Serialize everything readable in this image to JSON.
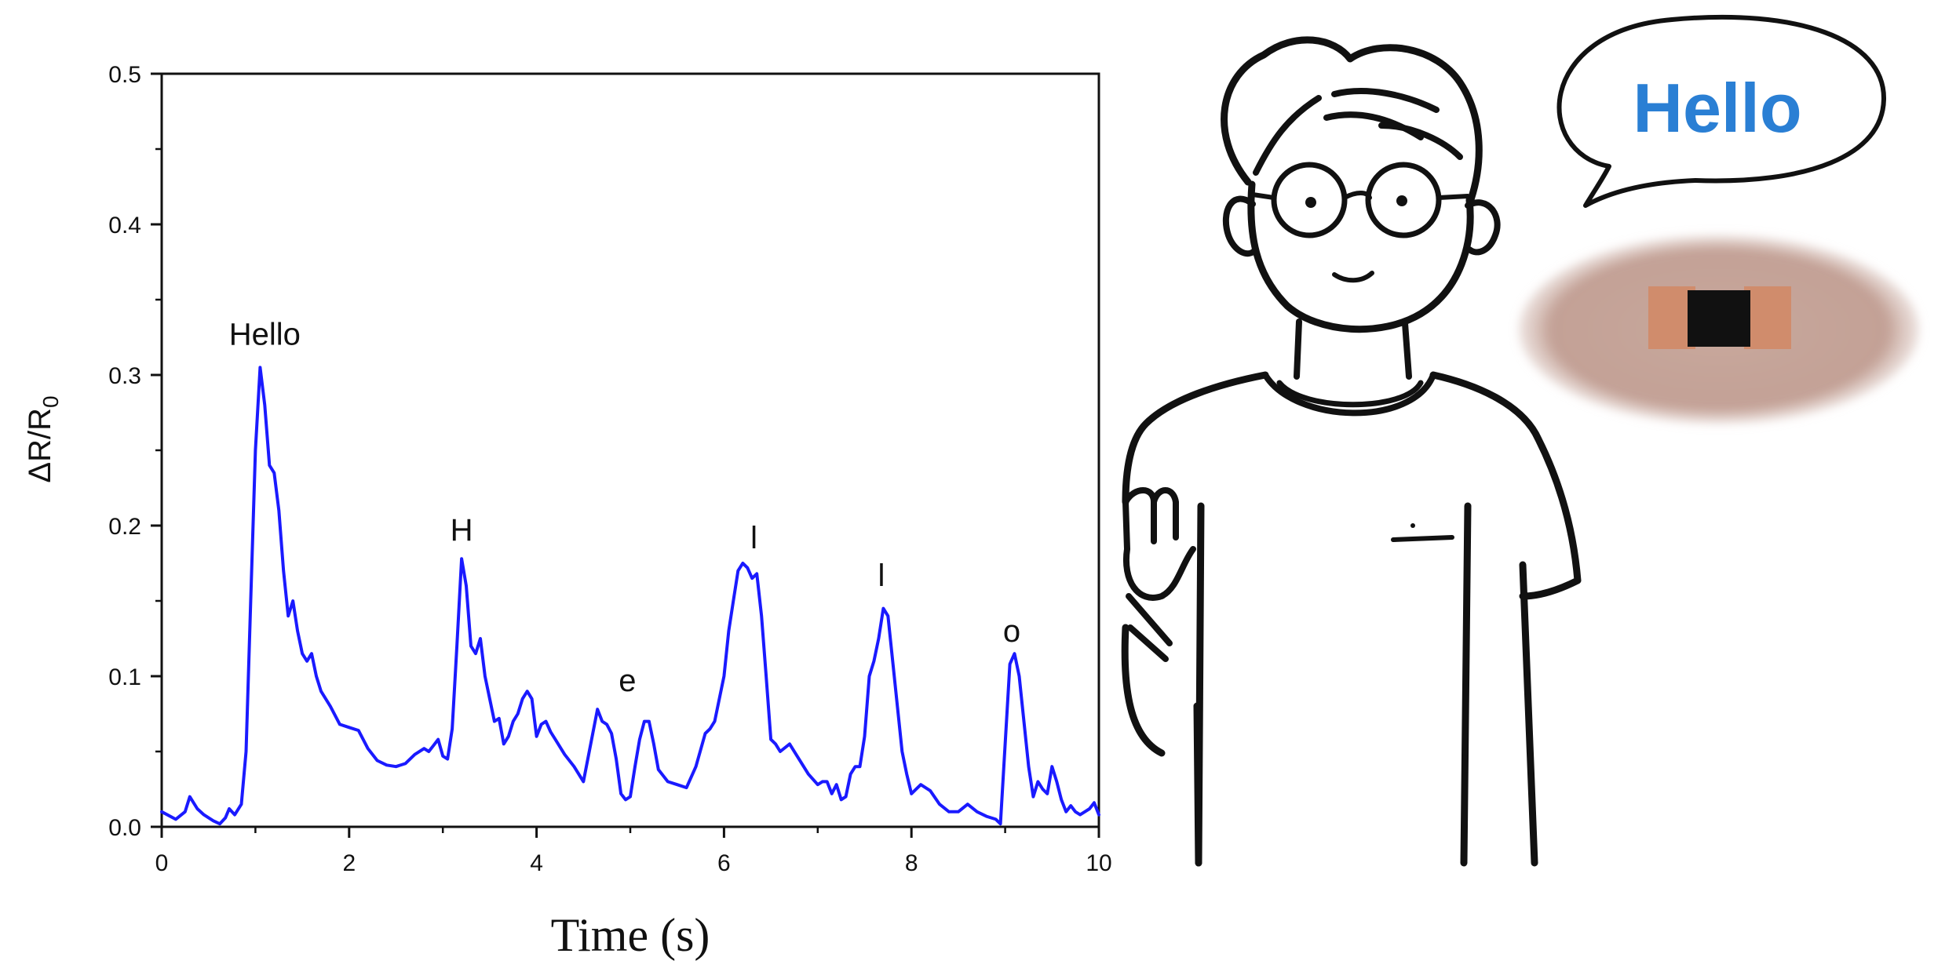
{
  "chart_data": {
    "type": "line",
    "xlabel": "Time (s)",
    "ylabel": "ΔR/R",
    "ylabel_subscript": "0",
    "xlim": [
      0,
      10
    ],
    "ylim": [
      0,
      0.5
    ],
    "x_ticks": [
      0,
      2,
      4,
      6,
      8,
      10
    ],
    "y_ticks": [
      0.0,
      0.1,
      0.2,
      0.3,
      0.4,
      0.5
    ],
    "x_tick_labels": [
      "0",
      "2",
      "4",
      "6",
      "8",
      "10"
    ],
    "y_tick_labels": [
      "0.0",
      "0.1",
      "0.2",
      "0.3",
      "0.4",
      "0.5"
    ],
    "grid": false,
    "series": [
      {
        "color": "#1a1aff",
        "x": [
          0,
          0.15,
          0.25,
          0.3,
          0.38,
          0.45,
          0.55,
          0.62,
          0.68,
          0.72,
          0.78,
          0.85,
          0.9,
          0.95,
          1.0,
          1.05,
          1.1,
          1.15,
          1.2,
          1.25,
          1.3,
          1.35,
          1.4,
          1.45,
          1.5,
          1.55,
          1.6,
          1.65,
          1.7,
          1.8,
          1.9,
          2.0,
          2.1,
          2.2,
          2.3,
          2.4,
          2.5,
          2.6,
          2.7,
          2.8,
          2.85,
          2.9,
          2.95,
          3.0,
          3.05,
          3.1,
          3.15,
          3.2,
          3.25,
          3.3,
          3.35,
          3.4,
          3.45,
          3.5,
          3.55,
          3.6,
          3.65,
          3.7,
          3.75,
          3.8,
          3.85,
          3.9,
          3.95,
          4.0,
          4.05,
          4.1,
          4.15,
          4.2,
          4.3,
          4.4,
          4.5,
          4.6,
          4.65,
          4.7,
          4.75,
          4.8,
          4.85,
          4.9,
          4.95,
          5.0,
          5.05,
          5.1,
          5.15,
          5.2,
          5.25,
          5.3,
          5.35,
          5.4,
          5.5,
          5.6,
          5.7,
          5.8,
          5.85,
          5.9,
          6.0,
          6.05,
          6.1,
          6.15,
          6.2,
          6.25,
          6.3,
          6.35,
          6.4,
          6.45,
          6.5,
          6.55,
          6.6,
          6.7,
          6.8,
          6.9,
          7.0,
          7.05,
          7.1,
          7.15,
          7.2,
          7.25,
          7.3,
          7.35,
          7.4,
          7.45,
          7.5,
          7.55,
          7.6,
          7.65,
          7.7,
          7.75,
          7.8,
          7.85,
          7.9,
          7.95,
          8.0,
          8.1,
          8.2,
          8.3,
          8.4,
          8.5,
          8.6,
          8.7,
          8.8,
          8.9,
          8.95,
          9.0,
          9.05,
          9.1,
          9.15,
          9.2,
          9.25,
          9.3,
          9.35,
          9.4,
          9.45,
          9.5,
          9.55,
          9.6,
          9.65,
          9.7,
          9.75,
          9.8,
          9.85,
          9.9,
          9.95,
          10.0
        ],
        "y": [
          0.01,
          0.005,
          0.01,
          0.02,
          0.012,
          0.008,
          0.004,
          0.002,
          0.006,
          0.012,
          0.008,
          0.015,
          0.05,
          0.15,
          0.25,
          0.305,
          0.28,
          0.24,
          0.235,
          0.21,
          0.17,
          0.14,
          0.15,
          0.13,
          0.115,
          0.11,
          0.115,
          0.1,
          0.09,
          0.08,
          0.068,
          0.066,
          0.064,
          0.052,
          0.044,
          0.041,
          0.04,
          0.042,
          0.048,
          0.052,
          0.05,
          0.054,
          0.058,
          0.047,
          0.045,
          0.065,
          0.12,
          0.178,
          0.16,
          0.12,
          0.115,
          0.125,
          0.1,
          0.085,
          0.07,
          0.072,
          0.055,
          0.06,
          0.07,
          0.075,
          0.085,
          0.09,
          0.085,
          0.06,
          0.068,
          0.07,
          0.063,
          0.058,
          0.048,
          0.04,
          0.03,
          0.062,
          0.078,
          0.07,
          0.068,
          0.062,
          0.045,
          0.022,
          0.018,
          0.02,
          0.04,
          0.058,
          0.07,
          0.07,
          0.055,
          0.038,
          0.034,
          0.03,
          0.028,
          0.026,
          0.04,
          0.062,
          0.065,
          0.07,
          0.1,
          0.13,
          0.15,
          0.17,
          0.175,
          0.172,
          0.165,
          0.168,
          0.14,
          0.1,
          0.058,
          0.055,
          0.05,
          0.055,
          0.045,
          0.035,
          0.028,
          0.03,
          0.03,
          0.022,
          0.028,
          0.018,
          0.02,
          0.035,
          0.04,
          0.04,
          0.06,
          0.1,
          0.11,
          0.125,
          0.145,
          0.14,
          0.11,
          0.08,
          0.05,
          0.035,
          0.022,
          0.028,
          0.024,
          0.015,
          0.01,
          0.01,
          0.015,
          0.01,
          0.007,
          0.005,
          0.002,
          0.055,
          0.108,
          0.115,
          0.1,
          0.07,
          0.04,
          0.02,
          0.03,
          0.025,
          0.022,
          0.04,
          0.03,
          0.018,
          0.01,
          0.014,
          0.01,
          0.008,
          0.01,
          0.012,
          0.016,
          0.008
        ]
      }
    ],
    "annotations": [
      {
        "text": "Hello",
        "x": 1.1,
        "y": 0.32
      },
      {
        "text": "H",
        "x": 3.2,
        "y": 0.19
      },
      {
        "text": "e",
        "x": 4.97,
        "y": 0.09
      },
      {
        "text": "l",
        "x": 6.32,
        "y": 0.185
      },
      {
        "text": "l",
        "x": 7.68,
        "y": 0.16
      },
      {
        "text": "o",
        "x": 9.07,
        "y": 0.123
      }
    ]
  },
  "illustration": {
    "speech_bubble_text": "Hello",
    "bubble_text_color": "#2a7fd4",
    "sensor_colors": {
      "skin": "#c8a89c",
      "electrode": "#d08c6c",
      "sensor": "#111111"
    }
  }
}
